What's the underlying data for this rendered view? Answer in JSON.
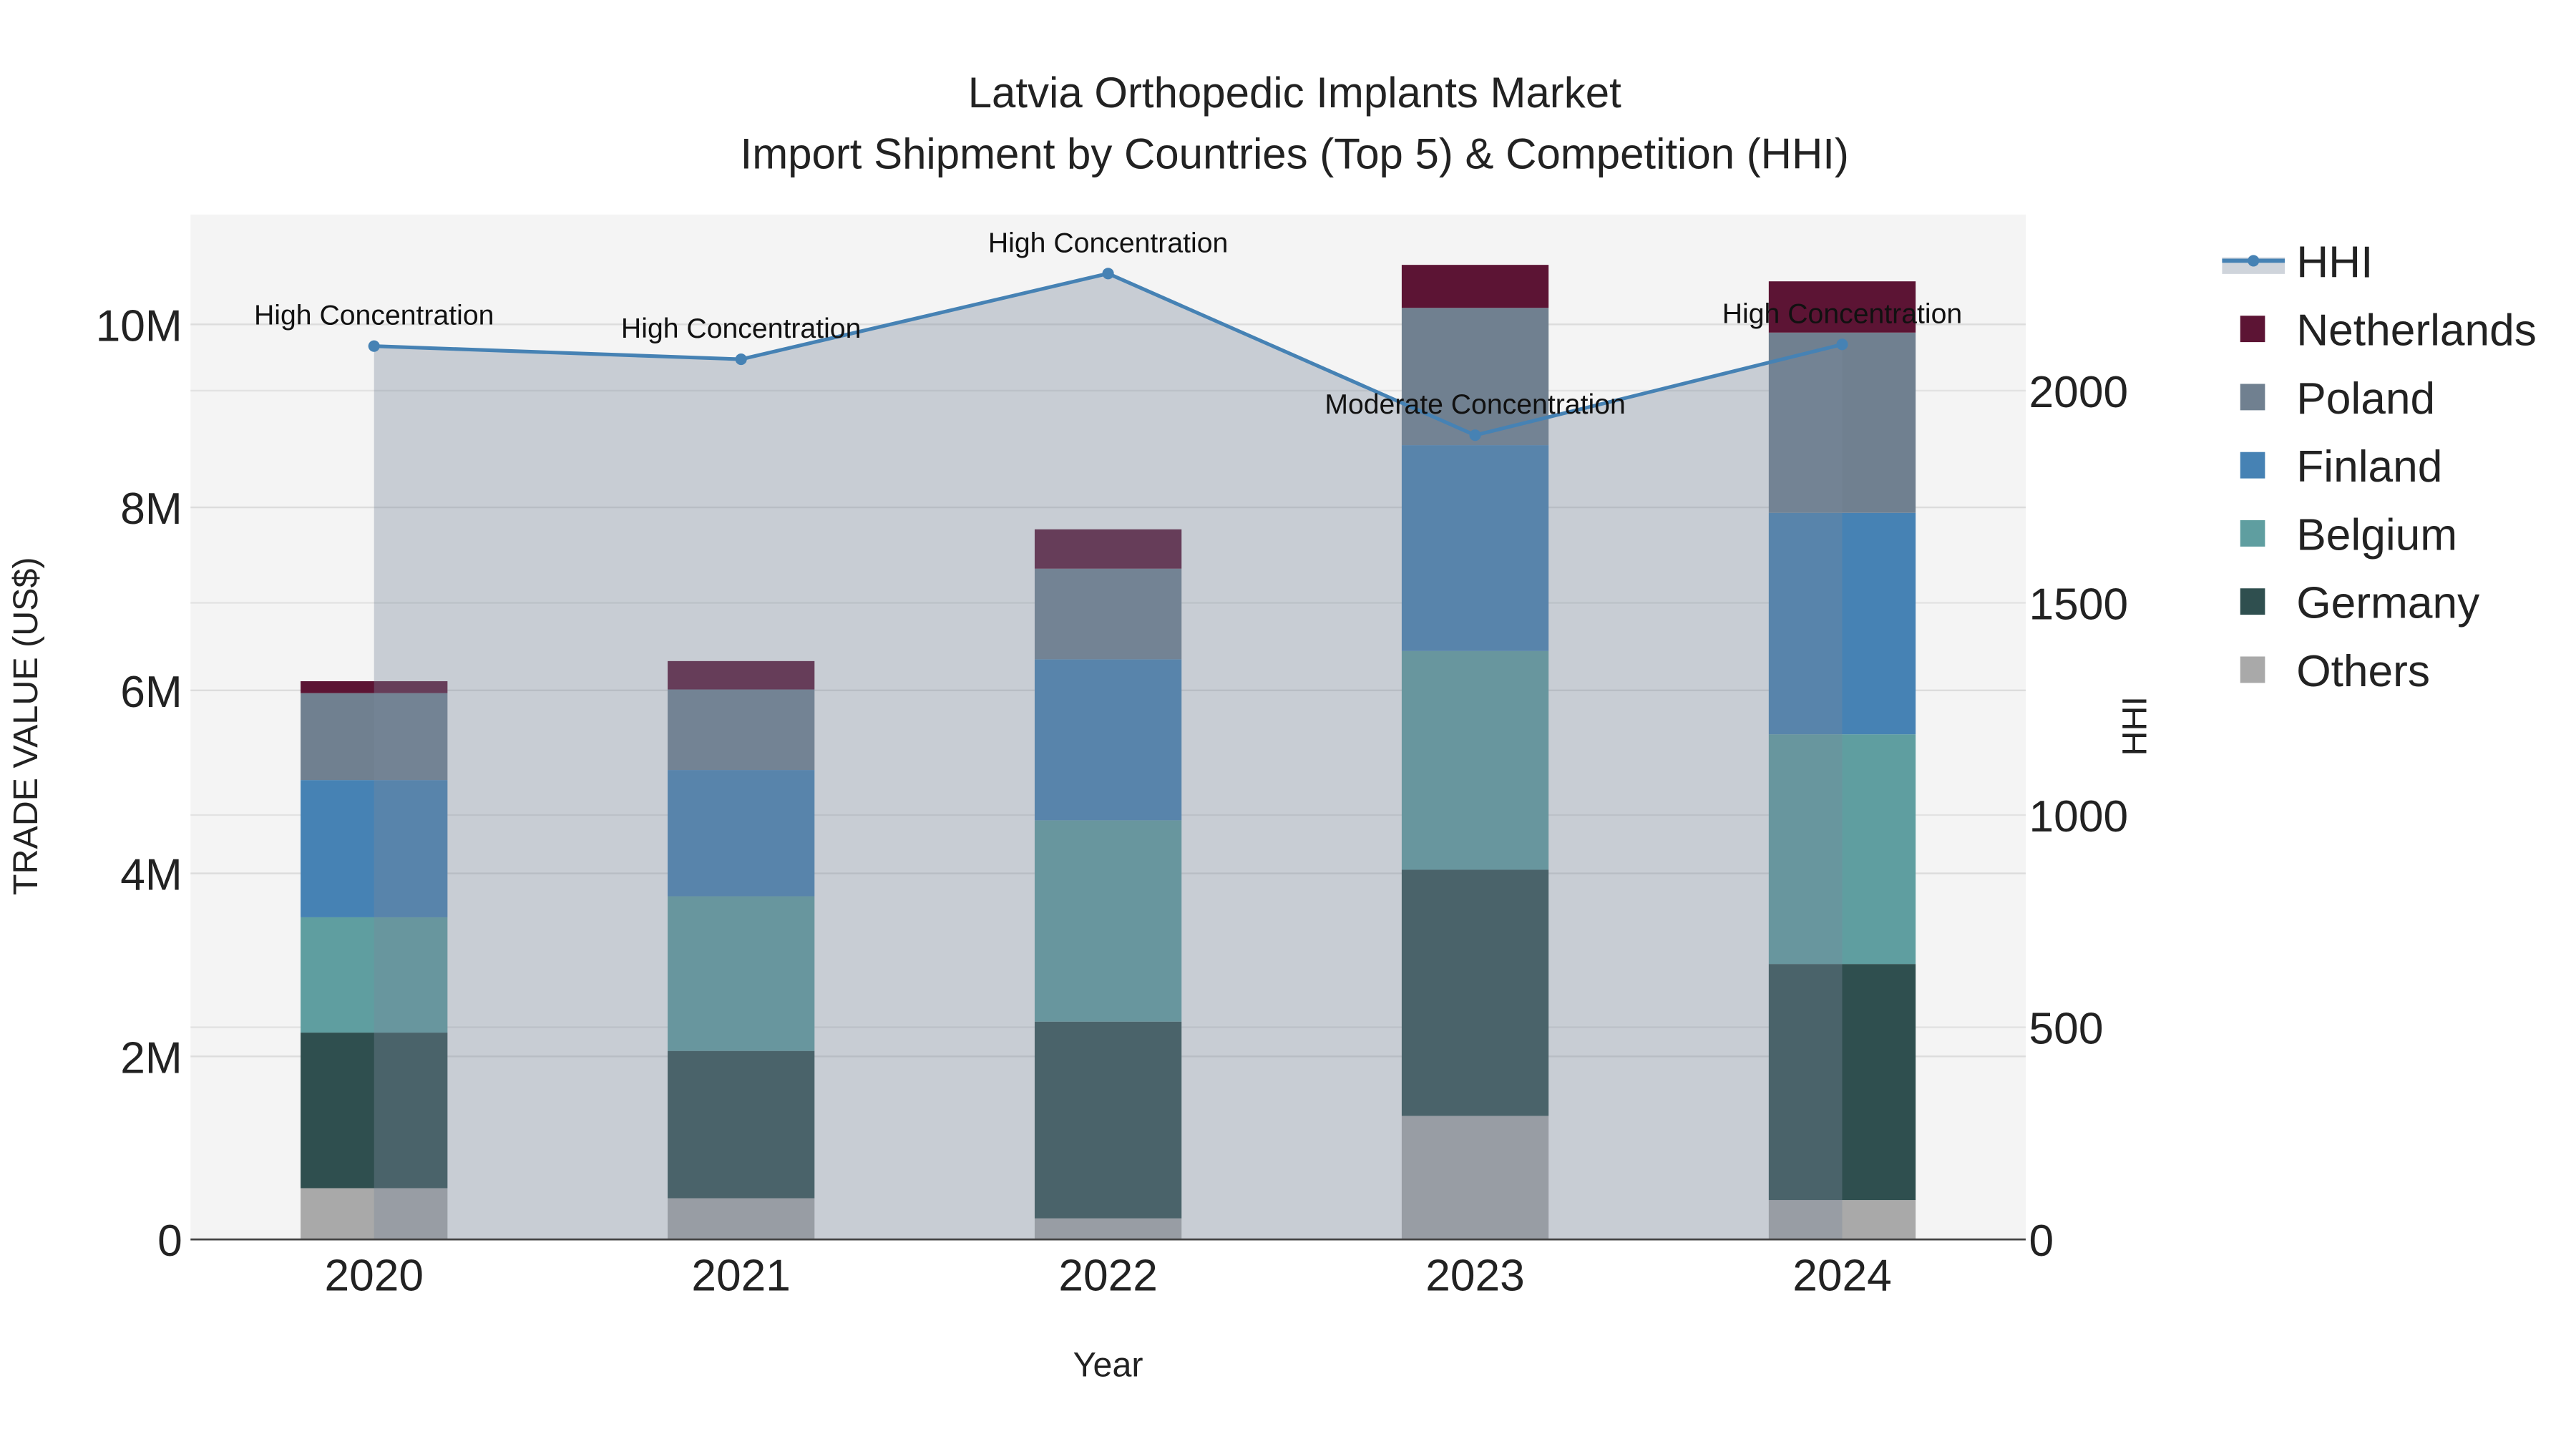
{
  "chart_data": {
    "type": "bar",
    "stacked": true,
    "title": "Latvia Orthopedic Implants Market",
    "subtitle": "Import Shipment by Countries (Top 5) & Competition (HHI)",
    "xlabel": "Year",
    "ylabel": "TRADE VALUE (US$)",
    "y2label": "HHI",
    "categories": [
      "2020",
      "2021",
      "2022",
      "2023",
      "2024"
    ],
    "ylim": [
      0,
      11200000
    ],
    "y2lim": [
      0,
      2415
    ],
    "yticks": [
      {
        "v": 0,
        "label": "0"
      },
      {
        "v": 2000000,
        "label": "2M"
      },
      {
        "v": 4000000,
        "label": "4M"
      },
      {
        "v": 6000000,
        "label": "6M"
      },
      {
        "v": 8000000,
        "label": "8M"
      },
      {
        "v": 10000000,
        "label": "10M"
      }
    ],
    "y2ticks": [
      {
        "v": 0,
        "label": "0"
      },
      {
        "v": 500,
        "label": "500"
      },
      {
        "v": 1000,
        "label": "1000"
      },
      {
        "v": 1500,
        "label": "1500"
      },
      {
        "v": 2000,
        "label": "2000"
      }
    ],
    "grid": true,
    "legend_position": "right",
    "series": [
      {
        "name": "Others",
        "color": "#a9a9a9",
        "values": [
          560000,
          450000,
          230000,
          1350000,
          430000
        ]
      },
      {
        "name": "Germany",
        "color": "#2f4f4f",
        "values": [
          1700000,
          1610000,
          2150000,
          2690000,
          2580000
        ]
      },
      {
        "name": "Belgium",
        "color": "#5f9ea0",
        "values": [
          1260000,
          1690000,
          2200000,
          2390000,
          2510000
        ]
      },
      {
        "name": "Finland",
        "color": "#4682b4",
        "values": [
          1500000,
          1380000,
          1760000,
          2250000,
          2420000
        ]
      },
      {
        "name": "Poland",
        "color": "#708090",
        "values": [
          950000,
          880000,
          990000,
          1500000,
          1970000
        ]
      },
      {
        "name": "Netherlands",
        "color": "#5c1434",
        "values": [
          130000,
          310000,
          430000,
          470000,
          560000
        ]
      }
    ],
    "line": {
      "name": "HHI",
      "color": "#4682b4",
      "values": [
        2105,
        2074,
        2276,
        1895,
        2109
      ],
      "annotations": [
        "High Concentration",
        "High Concentration",
        "High Concentration",
        "Moderate Concentration",
        "High Concentration"
      ]
    },
    "legend_order": [
      "HHI",
      "Netherlands",
      "Poland",
      "Finland",
      "Belgium",
      "Germany",
      "Others"
    ]
  }
}
